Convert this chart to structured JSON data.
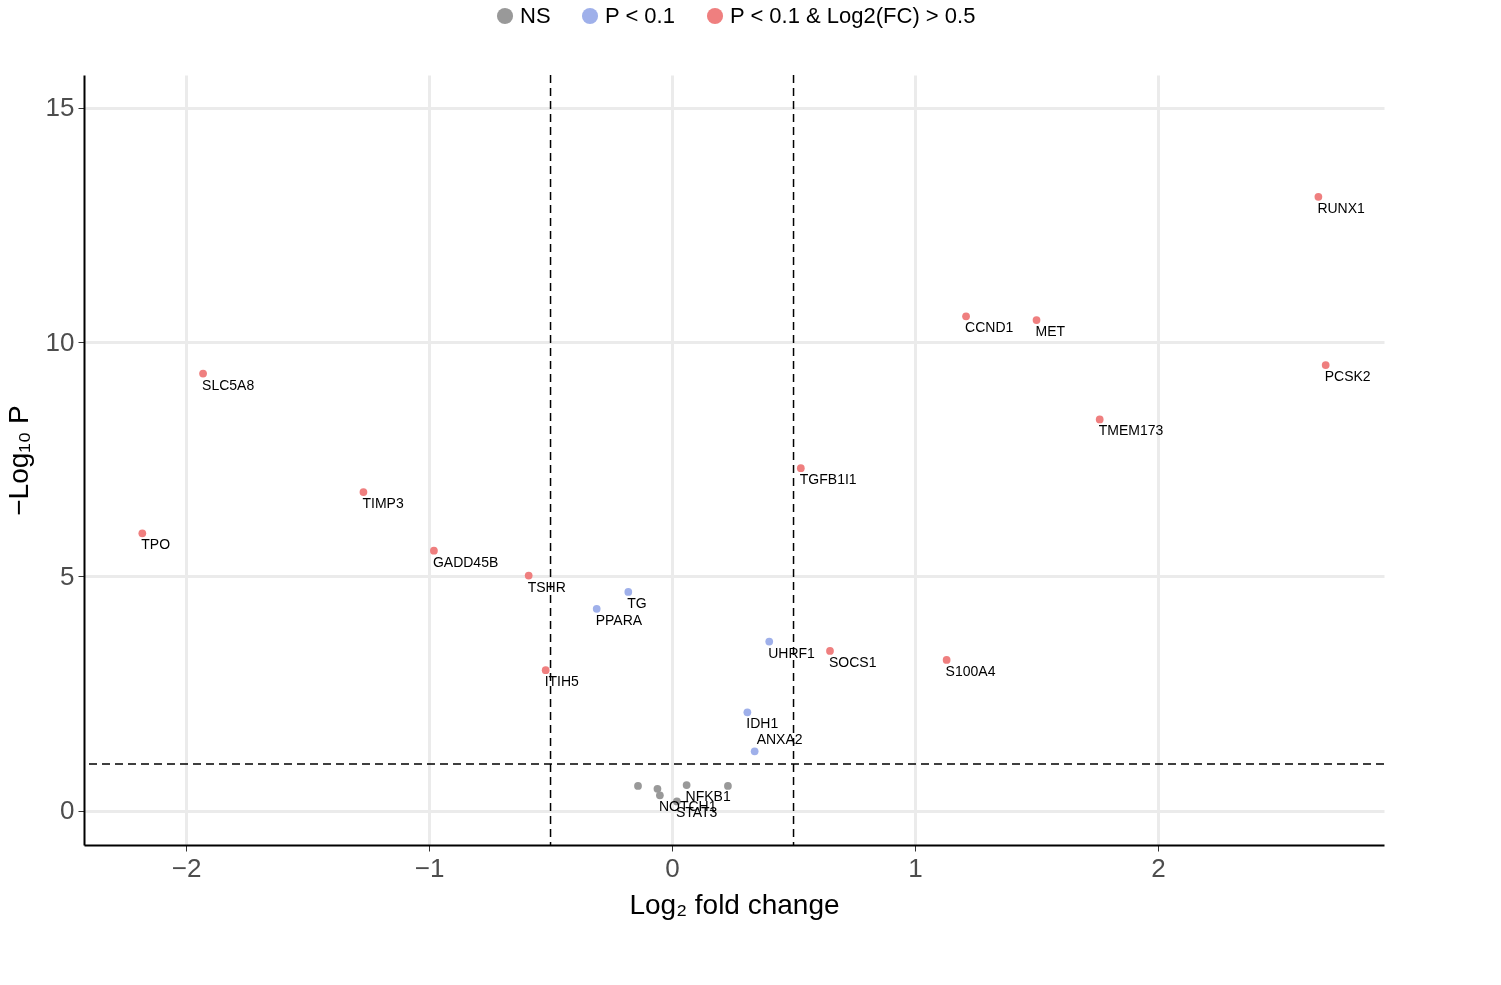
{
  "chart_data": {
    "type": "scatter",
    "xlabel": "Log₂ fold change",
    "ylabel": "−Log₁₀ P",
    "legend": "top",
    "grid": true,
    "marker": "circle",
    "xlim": [
      -2.42,
      2.93
    ],
    "ylim": [
      -0.73,
      15.7
    ],
    "xticks": [
      {
        "value": -2,
        "label": "−2"
      },
      {
        "value": -1,
        "label": "−1"
      },
      0,
      1,
      2
    ],
    "yticks": [
      0,
      5,
      10,
      15
    ],
    "series": [
      {
        "name": "NS",
        "color": "#999999",
        "x": [
          -0.14,
          -0.06,
          -0.05,
          0.06,
          0.02,
          0.23
        ],
        "values": [
          0.53,
          0.47,
          0.33,
          0.55,
          0.2,
          0.53
        ]
      },
      {
        "name": "P < 0.1",
        "color": "#9fb0ea",
        "x": [
          -0.18,
          -0.31,
          0.4,
          0.31,
          0.34
        ],
        "values": [
          4.67,
          4.31,
          3.61,
          2.1,
          1.27
        ]
      },
      {
        "name": "P < 0.1 & Log2(FC) > 0.5",
        "color": "#ef7f7f",
        "x": [
          2.66,
          1.21,
          1.5,
          2.69,
          1.76,
          0.53,
          -1.93,
          -1.27,
          -2.18,
          -0.98,
          -0.59,
          0.65,
          1.13,
          -0.52
        ],
        "values": [
          13.1,
          10.55,
          10.47,
          9.51,
          8.35,
          7.31,
          9.33,
          6.8,
          5.92,
          5.55,
          5.02,
          3.41,
          3.22,
          3.0
        ]
      }
    ],
    "ref_lines": [
      {
        "axis": "x",
        "value": -0.5,
        "line_style": "dashed"
      },
      {
        "axis": "x",
        "value": 0.5,
        "line_style": "dashed"
      },
      {
        "axis": "y",
        "value": 1,
        "line_style": "dashed"
      }
    ],
    "annotations": [
      {
        "text": "RUNX1",
        "x": 2.66,
        "y": 13.1
      },
      {
        "text": "CCND1",
        "x": 1.21,
        "y": 10.55
      },
      {
        "text": "MET",
        "x": 1.5,
        "y": 10.47
      },
      {
        "text": "PCSK2",
        "x": 2.69,
        "y": 9.51
      },
      {
        "text": "TMEM173",
        "x": 1.76,
        "y": 8.35
      },
      {
        "text": "TGFB1I1",
        "x": 0.53,
        "y": 7.31
      },
      {
        "text": "SLC5A8",
        "x": -1.93,
        "y": 9.33
      },
      {
        "text": "TIMP3",
        "x": -1.27,
        "y": 6.8
      },
      {
        "text": "TPO",
        "x": -2.18,
        "y": 5.92
      },
      {
        "text": "GADD45B",
        "x": -0.98,
        "y": 5.55
      },
      {
        "text": "TSHR",
        "x": -0.59,
        "y": 5.02
      },
      {
        "text": "TG",
        "x": -0.18,
        "y": 4.67
      },
      {
        "text": "PPARA",
        "x": -0.31,
        "y": 4.31
      },
      {
        "text": "UHRF1",
        "x": 0.4,
        "y": 3.61
      },
      {
        "text": "SOCS1",
        "x": 0.65,
        "y": 3.41
      },
      {
        "text": "S100A4",
        "x": 1.13,
        "y": 3.22
      },
      {
        "text": "ITIH5",
        "x": -0.52,
        "y": 3.0
      },
      {
        "text": "IDH1",
        "x": 0.31,
        "y": 2.1
      },
      {
        "text": "ANXA2",
        "x": 0.34,
        "y": 1.27
      },
      {
        "text": "NFKB1",
        "x": 0.06,
        "y": 0.55
      },
      {
        "text": "NOTCH1",
        "x": -0.05,
        "y": 0.33
      },
      {
        "text": "STAT3",
        "x": 0.02,
        "y": 0.2
      }
    ]
  }
}
